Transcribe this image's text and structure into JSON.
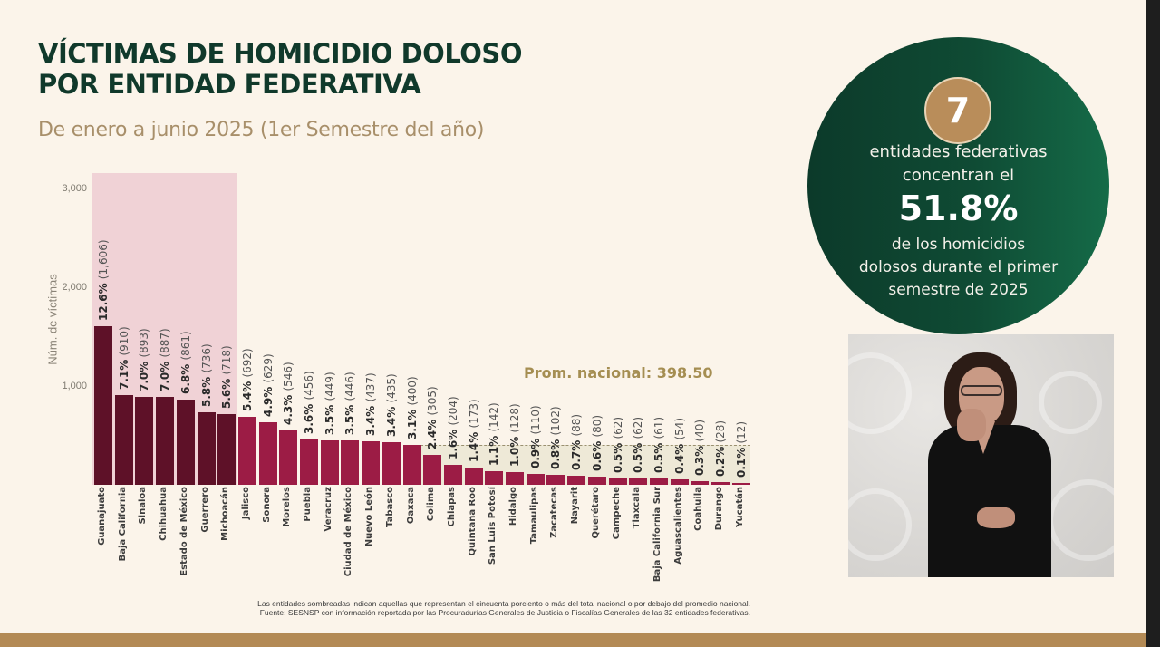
{
  "slide": {
    "title_line1": "VÍCTIMAS DE HOMICIDIO DOLOSO",
    "title_line2": "POR ENTIDAD FEDERATIVA",
    "subtitle": "De enero a junio 2025 (1er Semestre del año)",
    "footnote_line1": "Las entidades sombreadas indican aquellas que representan el cincuenta porciento o más del total nacional o por debajo del promedio nacional.",
    "footnote_line2": "Fuente: SESNSP con información reportada por las Procuradurías Generales de Justicia o Fiscalías Generales de las 32 entidades federativas."
  },
  "callout": {
    "number": "7",
    "text1_line1": "entidades federativas",
    "text1_line2": "concentran el",
    "percent": "51.8%",
    "text2_line1": "de los homicidios",
    "text2_line2": "dolosos durante el primer",
    "text2_line3": "semestre de 2025"
  },
  "video": {
    "description": "sign-language-interpreter"
  },
  "colors": {
    "title": "#10392b",
    "subtitle": "#a88f6a",
    "bar_top7": "#5e1128",
    "bar_rest": "#9c1c45",
    "shade_top": "#f0d2d6",
    "shade_bottom": "#eee9d7",
    "avg_label": "#a58e52",
    "circle": "#0f4b34",
    "badge": "#b98d5a",
    "bottom_bar": "#b38a55"
  },
  "chart_data": {
    "type": "bar",
    "title": "VÍCTIMAS DE HOMICIDIO DOLOSO POR ENTIDAD FEDERATIVA",
    "subtitle": "De enero a junio 2025 (1er Semestre del año)",
    "xlabel": "",
    "ylabel": "Núm. de víctimas",
    "ylim": [
      0,
      3000
    ],
    "yticks": [
      "1,000",
      "2,000",
      "3,000"
    ],
    "grid": false,
    "average_line": {
      "label": "Prom. nacional: 398.50",
      "value": 398.5
    },
    "categories": [
      "Guanajuato",
      "Baja California",
      "Sinaloa",
      "Chihuahua",
      "Estado de México",
      "Guerrero",
      "Michoacán",
      "Jalisco",
      "Sonora",
      "Morelos",
      "Puebla",
      "Veracruz",
      "Ciudad de México",
      "Nuevo León",
      "Tabasco",
      "Oaxaca",
      "Colima",
      "Chiapas",
      "Quintana Roo",
      "San Luis Potosí",
      "Hidalgo",
      "Tamaulipas",
      "Zacatecas",
      "Nayarit",
      "Querétaro",
      "Campeche",
      "Tlaxcala",
      "Baja California Sur",
      "Aguascalientes",
      "Coahuila",
      "Durango",
      "Yucatán"
    ],
    "values": [
      1606,
      910,
      893,
      887,
      861,
      736,
      718,
      692,
      629,
      546,
      456,
      449,
      446,
      437,
      435,
      400,
      305,
      204,
      173,
      142,
      128,
      110,
      102,
      88,
      80,
      62,
      62,
      61,
      54,
      40,
      28,
      12
    ],
    "percents": [
      "12.6%",
      "7.1%",
      "7.0%",
      "7.0%",
      "6.8%",
      "5.8%",
      "5.6%",
      "5.4%",
      "4.9%",
      "4.3%",
      "3.6%",
      "3.5%",
      "3.5%",
      "3.4%",
      "3.4%",
      "3.1%",
      "2.4%",
      "1.6%",
      "1.4%",
      "1.1%",
      "1.0%",
      "0.9%",
      "0.8%",
      "0.7%",
      "0.6%",
      "0.5%",
      "0.5%",
      "0.5%",
      "0.4%",
      "0.3%",
      "0.2%",
      "0.1%"
    ],
    "value_labels": [
      "(1,606)",
      "(910)",
      "(893)",
      "(887)",
      "(861)",
      "(736)",
      "(718)",
      "(692)",
      "(629)",
      "(546)",
      "(456)",
      "(449)",
      "(446)",
      "(437)",
      "(435)",
      "(400)",
      "(305)",
      "(204)",
      "(173)",
      "(142)",
      "(128)",
      "(110)",
      "(102)",
      "(88)",
      "(80)",
      "(62)",
      "(62)",
      "(61)",
      "(54)",
      "(40)",
      "(28)",
      "(12)"
    ],
    "highlight_top_count": 7,
    "annotations": [
      "Prom. nacional: 398.50"
    ]
  }
}
